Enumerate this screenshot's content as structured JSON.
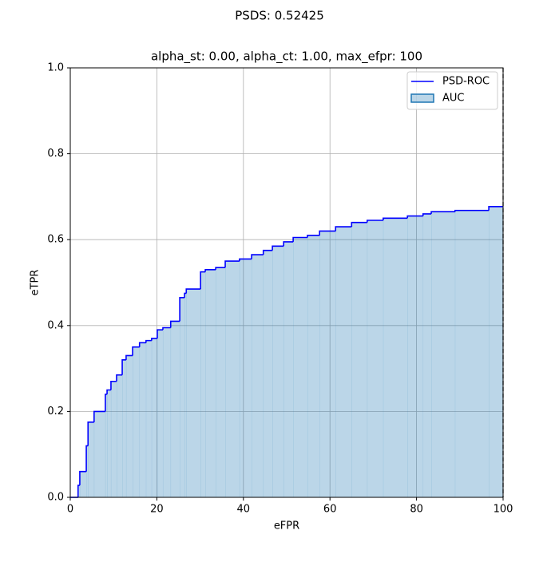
{
  "chart_data": {
    "type": "step",
    "title": "PSDS: 0.52425",
    "subtitle": "alpha_st: 0.00, alpha_ct: 1.00, max_efpr: 100",
    "x_label": "eFPR",
    "y_label": "eTPR",
    "x": [
      0,
      1.8,
      2.2,
      3.7,
      4.1,
      5.5,
      8.1,
      8.5,
      9.4,
      10.7,
      12,
      12.9,
      14.4,
      16,
      17.5,
      18.8,
      20.1,
      21.4,
      23.2,
      25.3,
      26.4,
      26.8,
      30.1,
      31.2,
      33.6,
      35.8,
      39.1,
      41.9,
      44.6,
      46.7,
      49.3,
      51.5,
      54.8,
      57.6,
      61.3,
      65,
      68.6,
      72.3,
      77.9,
      81.5,
      83.4,
      88.9,
      96.7,
      100
    ],
    "series": [
      {
        "name": "PSD-ROC",
        "color": "#0000ff",
        "values": [
          0,
          0.028,
          0.06,
          0.12,
          0.175,
          0.2,
          0.24,
          0.25,
          0.27,
          0.285,
          0.32,
          0.33,
          0.35,
          0.36,
          0.365,
          0.37,
          0.39,
          0.395,
          0.41,
          0.465,
          0.475,
          0.485,
          0.525,
          0.53,
          0.535,
          0.55,
          0.555,
          0.565,
          0.575,
          0.585,
          0.595,
          0.605,
          0.61,
          0.62,
          0.63,
          0.64,
          0.645,
          0.65,
          0.655,
          0.66,
          0.665,
          0.668,
          0.677,
          0.677
        ]
      }
    ],
    "area": {
      "name": "AUC",
      "color": "#1f77b4",
      "alpha": 0.3
    },
    "vline": 100,
    "xlim": [
      0,
      100
    ],
    "ylim": [
      0,
      1
    ],
    "xticks": [
      0,
      20,
      40,
      60,
      80,
      100
    ],
    "yticks": [
      {
        "value": 0,
        "label": "0.0"
      },
      {
        "value": 0.2,
        "label": "0.2"
      },
      {
        "value": 0.4,
        "label": "0.4"
      },
      {
        "value": 0.6,
        "label": "0.6"
      },
      {
        "value": 0.8,
        "label": "0.8"
      },
      {
        "value": 1,
        "label": "1.0"
      }
    ],
    "grid": true,
    "legend": "upper right"
  }
}
